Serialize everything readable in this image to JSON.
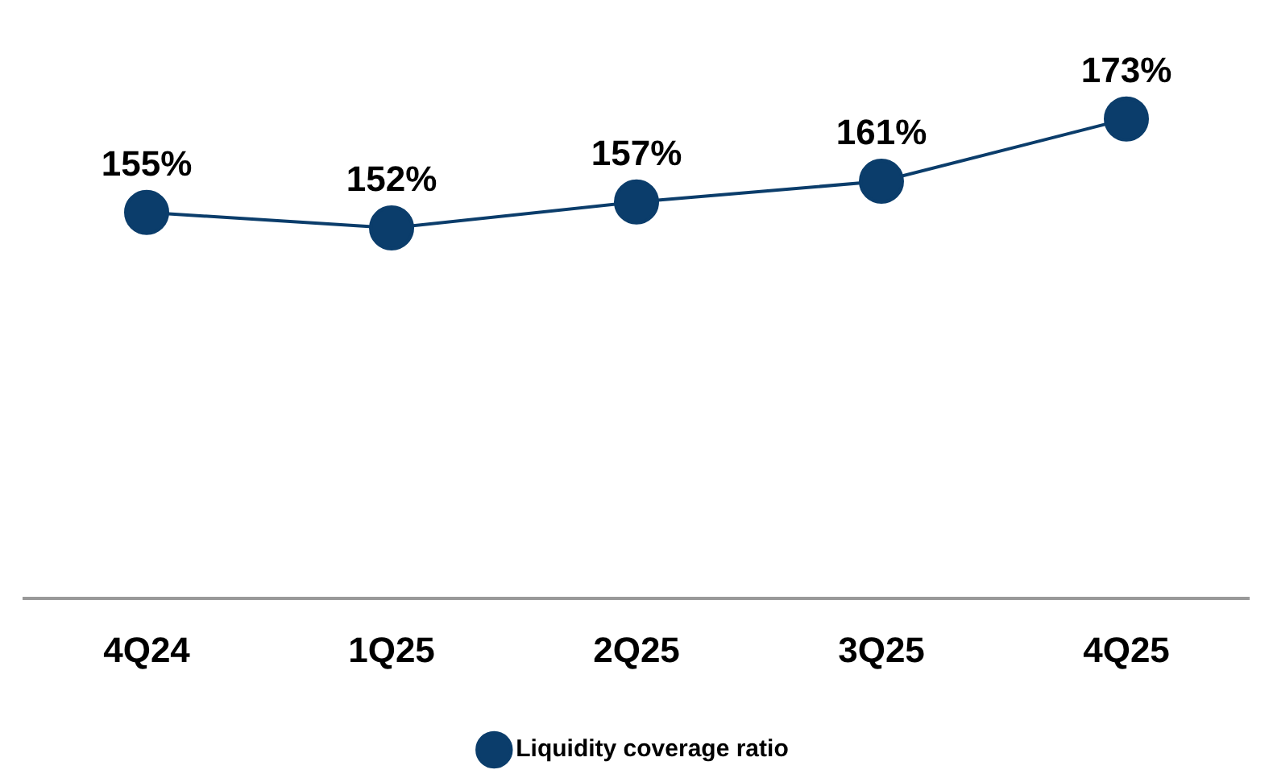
{
  "chart_data": {
    "type": "line",
    "categories": [
      "4Q24",
      "1Q25",
      "2Q25",
      "3Q25",
      "4Q25"
    ],
    "series": [
      {
        "name": "Liquidity coverage ratio",
        "color": "#0b3d6b",
        "values": [
          155,
          152,
          157,
          161,
          173
        ],
        "value_labels": [
          "155%",
          "152%",
          "157%",
          "161%",
          "173%"
        ]
      }
    ],
    "marker": "circle",
    "line_style": "solid",
    "grid": false,
    "legend": "bottom"
  }
}
